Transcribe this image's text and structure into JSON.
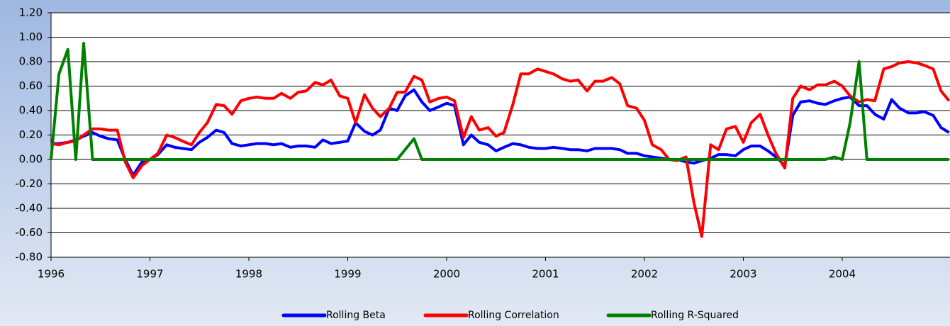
{
  "chart_data": {
    "type": "line",
    "x": [
      1996,
      1996.08,
      1996.17,
      1996.25,
      1996.33,
      1996.42,
      1996.5,
      1996.58,
      1996.67,
      1996.75,
      1996.83,
      1996.92,
      1997,
      1997.08,
      1997.17,
      1997.25,
      1997.33,
      1997.42,
      1997.5,
      1997.58,
      1997.67,
      1997.75,
      1997.83,
      1997.92,
      1998,
      1998.08,
      1998.17,
      1998.25,
      1998.33,
      1998.42,
      1998.5,
      1998.58,
      1998.67,
      1998.75,
      1998.83,
      1998.92,
      1999,
      1999.08,
      1999.17,
      1999.25,
      1999.33,
      1999.42,
      1999.5,
      1999.58,
      1999.67,
      1999.75,
      1999.83,
      1999.92,
      2000,
      2000.08,
      2000.17,
      2000.25,
      2000.33,
      2000.42,
      2000.5,
      2000.58,
      2000.67,
      2000.75,
      2000.83,
      2000.92,
      2001,
      2001.08,
      2001.17,
      2001.25,
      2001.33,
      2001.42,
      2001.5,
      2001.58,
      2001.67,
      2001.75,
      2001.83,
      2001.92,
      2002,
      2002.08,
      2002.17,
      2002.25,
      2002.33,
      2002.42,
      2002.5,
      2002.58,
      2002.67,
      2002.75,
      2002.83,
      2002.92,
      2003,
      2003.08,
      2003.17,
      2003.25,
      2003.33,
      2003.42,
      2003.5,
      2003.58,
      2003.67,
      2003.75,
      2003.83,
      2003.92,
      2004,
      2004.08,
      2004.17,
      2004.25,
      2004.33,
      2004.42,
      2004.5,
      2004.58,
      2004.67,
      2004.75,
      2004.83,
      2004.92,
      2005,
      2005.08
    ],
    "series": [
      {
        "name": "Rolling Beta",
        "color": "#0000ff",
        "values": [
          0.13,
          0.13,
          0.14,
          0.16,
          0.19,
          0.22,
          0.19,
          0.17,
          0.16,
          0.0,
          -0.13,
          -0.02,
          0.0,
          0.04,
          0.12,
          0.1,
          0.09,
          0.08,
          0.14,
          0.18,
          0.24,
          0.22,
          0.13,
          0.11,
          0.12,
          0.13,
          0.13,
          0.12,
          0.13,
          0.1,
          0.11,
          0.11,
          0.1,
          0.16,
          0.13,
          0.14,
          0.15,
          0.3,
          0.23,
          0.2,
          0.24,
          0.42,
          0.4,
          0.52,
          0.57,
          0.47,
          0.4,
          0.43,
          0.46,
          0.44,
          0.12,
          0.2,
          0.14,
          0.12,
          0.07,
          0.1,
          0.13,
          0.12,
          0.1,
          0.09,
          0.09,
          0.1,
          0.09,
          0.08,
          0.08,
          0.07,
          0.09,
          0.09,
          0.09,
          0.08,
          0.05,
          0.05,
          0.03,
          0.02,
          0.01,
          0.0,
          0.0,
          -0.02,
          -0.03,
          -0.01,
          0.01,
          0.04,
          0.04,
          0.03,
          0.08,
          0.11,
          0.11,
          0.07,
          0.02,
          -0.05,
          0.36,
          0.47,
          0.48,
          0.46,
          0.45,
          0.48,
          0.5,
          0.51,
          0.44,
          0.44,
          0.37,
          0.33,
          0.49,
          0.42,
          0.38,
          0.38,
          0.39,
          0.36,
          0.26,
          0.22
        ]
      },
      {
        "name": "Rolling Correlation",
        "color": "#ff0000",
        "values": [
          0.13,
          0.12,
          0.14,
          0.15,
          0.2,
          0.25,
          0.25,
          0.24,
          0.24,
          -0.02,
          -0.15,
          -0.05,
          0.0,
          0.05,
          0.2,
          0.18,
          0.15,
          0.12,
          0.22,
          0.3,
          0.45,
          0.44,
          0.37,
          0.48,
          0.5,
          0.51,
          0.5,
          0.5,
          0.54,
          0.5,
          0.55,
          0.56,
          0.63,
          0.61,
          0.65,
          0.52,
          0.5,
          0.3,
          0.53,
          0.42,
          0.35,
          0.42,
          0.55,
          0.55,
          0.68,
          0.65,
          0.47,
          0.5,
          0.51,
          0.48,
          0.18,
          0.35,
          0.24,
          0.26,
          0.19,
          0.22,
          0.45,
          0.7,
          0.7,
          0.74,
          0.72,
          0.7,
          0.66,
          0.64,
          0.65,
          0.56,
          0.64,
          0.64,
          0.67,
          0.62,
          0.44,
          0.42,
          0.32,
          0.12,
          0.08,
          0.0,
          -0.01,
          0.02,
          -0.35,
          -0.63,
          0.12,
          0.08,
          0.25,
          0.27,
          0.14,
          0.3,
          0.37,
          0.2,
          0.05,
          -0.07,
          0.5,
          0.6,
          0.57,
          0.61,
          0.61,
          0.64,
          0.6,
          0.52,
          0.47,
          0.49,
          0.48,
          0.74,
          0.76,
          0.79,
          0.8,
          0.79,
          0.77,
          0.74,
          0.56,
          0.48
        ]
      },
      {
        "name": "Rolling R-Squared",
        "color": "#008000",
        "values": [
          0,
          0.7,
          0.9,
          0,
          0.95,
          0,
          0,
          0,
          0,
          0,
          0,
          0,
          0,
          0,
          0,
          0,
          0,
          0,
          0,
          0,
          0,
          0,
          0,
          0,
          0,
          0,
          0,
          0,
          0,
          0,
          0,
          0,
          0,
          0,
          0,
          0,
          0,
          0,
          0,
          0,
          0,
          0,
          0,
          0.08,
          0.17,
          0,
          0,
          0,
          0,
          0,
          0,
          0,
          0,
          0,
          0,
          0,
          0,
          0,
          0,
          0,
          0,
          0,
          0,
          0,
          0,
          0,
          0,
          0,
          0,
          0,
          0,
          0,
          0,
          0,
          0,
          0,
          0,
          0,
          0,
          0,
          0,
          0,
          0,
          0,
          0,
          0,
          0,
          0,
          0,
          0,
          0,
          0,
          0,
          0,
          0,
          0.02,
          0,
          0.3,
          0.8,
          0,
          0,
          0,
          0,
          0,
          0,
          0,
          0,
          0,
          0,
          0
        ]
      }
    ],
    "xlim": [
      1996,
      2005.09
    ],
    "xticks": [
      1996,
      1997,
      1998,
      1999,
      2000,
      2001,
      2002,
      2003,
      2004
    ],
    "ylim": [
      -0.8,
      1.2
    ],
    "yticks": [
      {
        "value": -0.8,
        "label": "-0.80"
      },
      {
        "value": -0.6,
        "label": "-0.60"
      },
      {
        "value": -0.4,
        "label": "-0.40"
      },
      {
        "value": -0.2,
        "label": "-0.20"
      },
      {
        "value": 0,
        "label": "0.00"
      },
      {
        "value": 0.2,
        "label": "0.20"
      },
      {
        "value": 0.4,
        "label": "0.40"
      },
      {
        "value": 0.6,
        "label": "0.60"
      },
      {
        "value": 0.8,
        "label": "0.80"
      },
      {
        "value": 1.0,
        "label": "1.00"
      },
      {
        "value": 1.2,
        "label": "1.20"
      }
    ],
    "grid": true,
    "legend": "bottom"
  }
}
